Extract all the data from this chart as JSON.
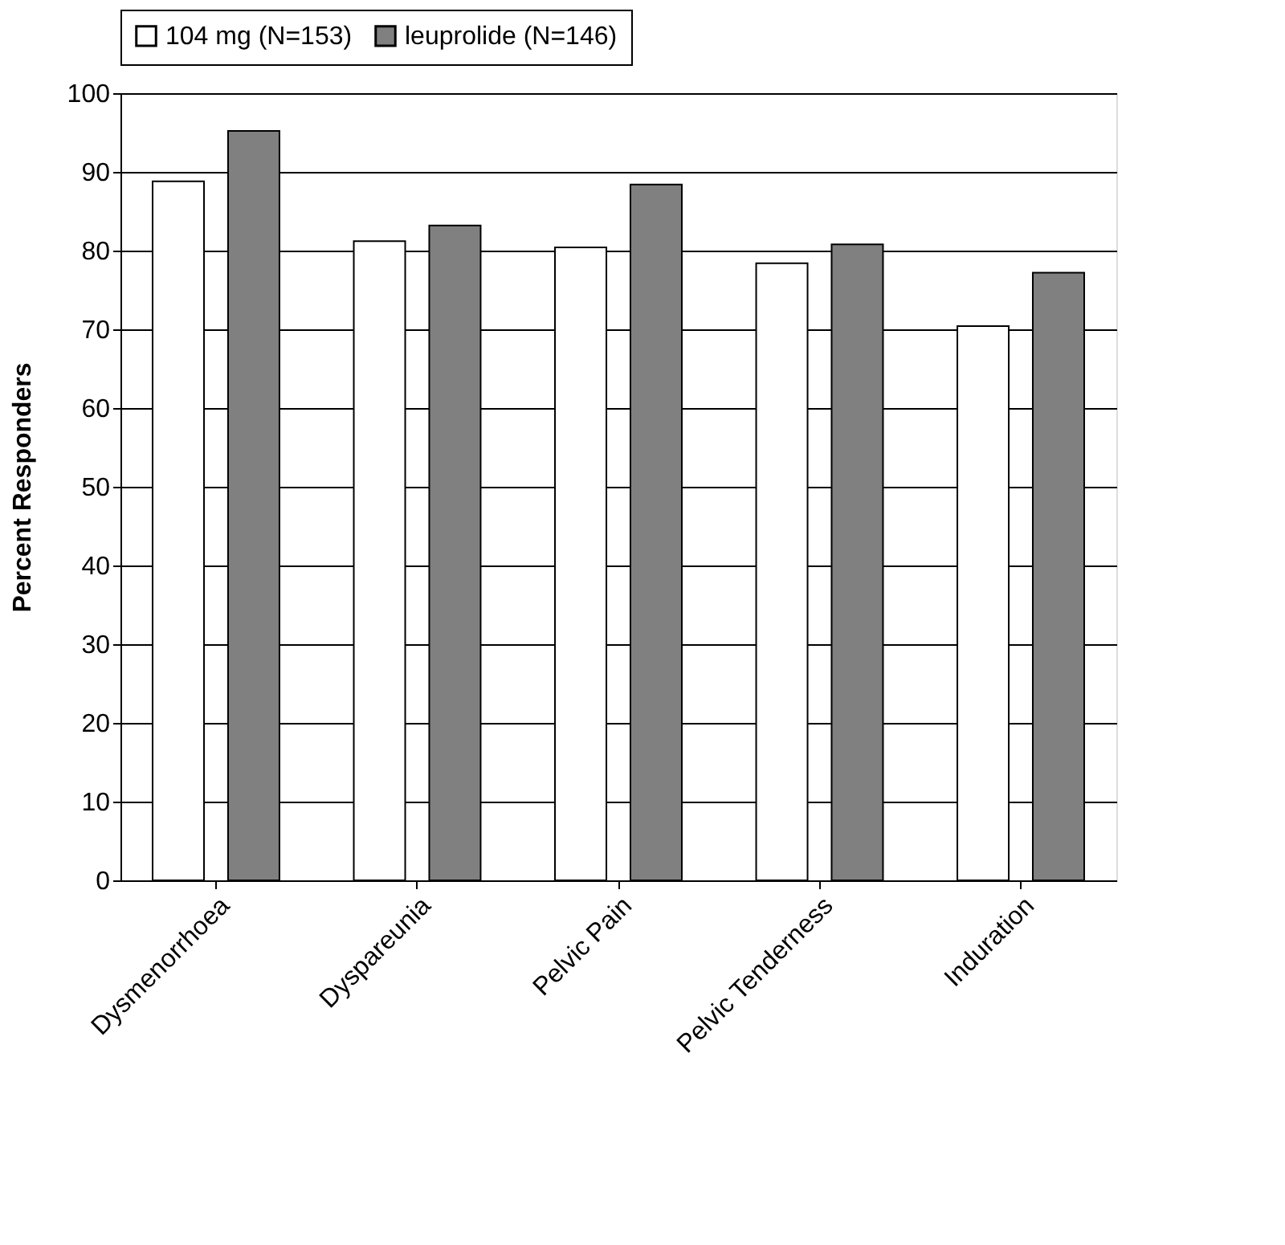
{
  "chart_data": {
    "type": "bar",
    "ylabel": "Percent Responders",
    "categories": [
      "Dysmenorrhoea",
      "Dyspareunia",
      "Pelvic Pain",
      "Pelvic Tenderness",
      "Induration"
    ],
    "series": [
      {
        "name": "104 mg (N=153)",
        "color": "#ffffff",
        "values": [
          88.8,
          81.2,
          80.4,
          78.4,
          70.4
        ]
      },
      {
        "name": "leuprolide (N=146)",
        "color": "#808080",
        "values": [
          95.2,
          83.2,
          88.4,
          80.8,
          77.2
        ]
      }
    ],
    "ylim": [
      0,
      100
    ],
    "yticks": [
      0,
      10,
      20,
      30,
      40,
      50,
      60,
      70,
      80,
      90,
      100
    ],
    "grid": "y",
    "legend": "top"
  }
}
